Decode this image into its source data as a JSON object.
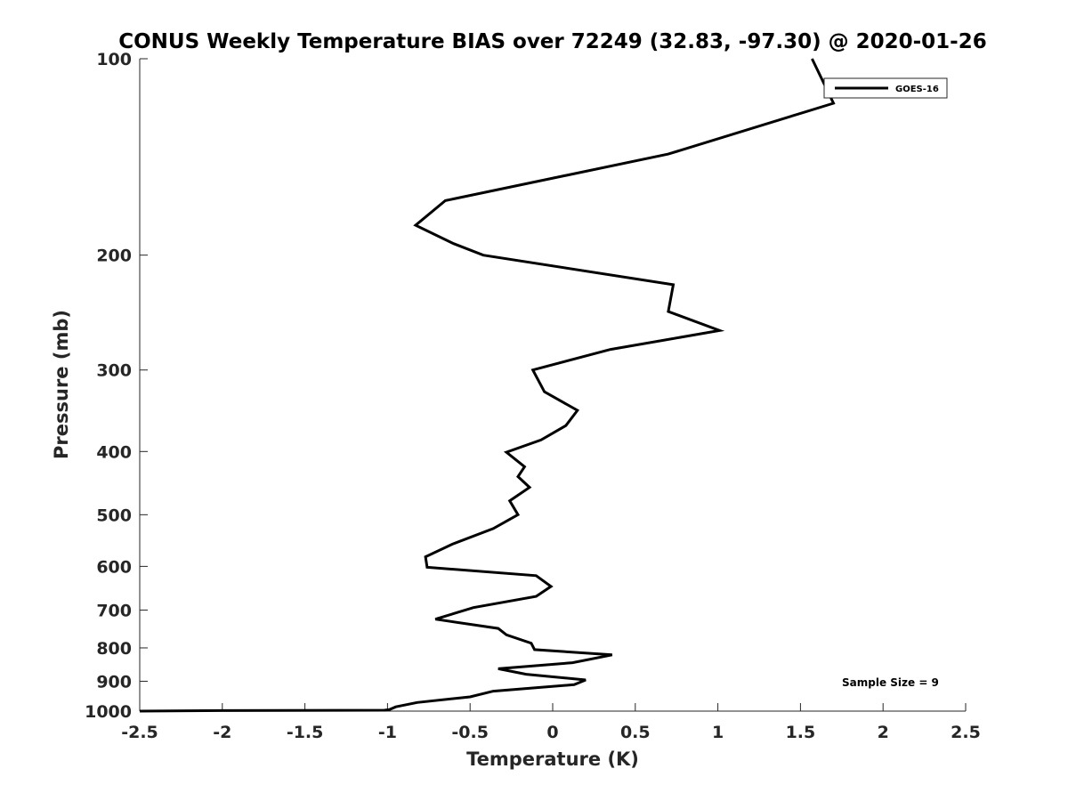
{
  "chart_data": {
    "type": "line",
    "title": "CONUS Weekly Temperature BIAS over 72249 (32.83, -97.30) @ 2020-01-26",
    "xlabel": "Temperature (K)",
    "ylabel": "Pressure (mb)",
    "xlim": [
      -2.5,
      2.5
    ],
    "ylim": [
      100,
      1000
    ],
    "y_scale": "log",
    "y_reversed": true,
    "x_ticks": [
      -2.5,
      -2,
      -1.5,
      -1,
      -0.5,
      0,
      0.5,
      1,
      1.5,
      2,
      2.5
    ],
    "x_tick_labels": [
      "-2.5",
      "-2",
      "-1.5",
      "-1",
      "-0.5",
      "0",
      "0.5",
      "1",
      "1.5",
      "2",
      "2.5"
    ],
    "y_ticks": [
      100,
      200,
      300,
      400,
      500,
      600,
      700,
      800,
      900,
      1000
    ],
    "y_tick_labels": [
      "100",
      "200",
      "300",
      "400",
      "500",
      "600",
      "700",
      "800",
      "900",
      "1000"
    ],
    "grid": false,
    "legend_position": "top-right",
    "annotation": "Sample Size = 9",
    "series": [
      {
        "name": "GOES-16",
        "color": "#000000",
        "points": [
          {
            "x": 1.57,
            "y": 100
          },
          {
            "x": 1.7,
            "y": 117
          },
          {
            "x": 0.7,
            "y": 140
          },
          {
            "x": -0.65,
            "y": 165
          },
          {
            "x": -0.83,
            "y": 180
          },
          {
            "x": -0.6,
            "y": 192
          },
          {
            "x": -0.42,
            "y": 200
          },
          {
            "x": 0.73,
            "y": 222
          },
          {
            "x": 0.7,
            "y": 244
          },
          {
            "x": 1.01,
            "y": 261
          },
          {
            "x": 0.35,
            "y": 279
          },
          {
            "x": -0.12,
            "y": 300
          },
          {
            "x": -0.05,
            "y": 324
          },
          {
            "x": 0.15,
            "y": 346
          },
          {
            "x": 0.08,
            "y": 365
          },
          {
            "x": -0.07,
            "y": 384
          },
          {
            "x": -0.28,
            "y": 401
          },
          {
            "x": -0.17,
            "y": 422
          },
          {
            "x": -0.21,
            "y": 437
          },
          {
            "x": -0.14,
            "y": 454
          },
          {
            "x": -0.26,
            "y": 476
          },
          {
            "x": -0.21,
            "y": 500
          },
          {
            "x": -0.36,
            "y": 525
          },
          {
            "x": -0.61,
            "y": 555
          },
          {
            "x": -0.77,
            "y": 580
          },
          {
            "x": -0.76,
            "y": 602
          },
          {
            "x": -0.1,
            "y": 620
          },
          {
            "x": -0.01,
            "y": 644
          },
          {
            "x": -0.1,
            "y": 667
          },
          {
            "x": -0.48,
            "y": 694
          },
          {
            "x": -0.71,
            "y": 723
          },
          {
            "x": -0.33,
            "y": 747
          },
          {
            "x": -0.28,
            "y": 764
          },
          {
            "x": -0.13,
            "y": 787
          },
          {
            "x": -0.11,
            "y": 805
          },
          {
            "x": 0.36,
            "y": 820
          },
          {
            "x": 0.12,
            "y": 843
          },
          {
            "x": -0.33,
            "y": 861
          },
          {
            "x": -0.16,
            "y": 878
          },
          {
            "x": 0.2,
            "y": 896
          },
          {
            "x": 0.13,
            "y": 911
          },
          {
            "x": -0.36,
            "y": 932
          },
          {
            "x": -0.5,
            "y": 951
          },
          {
            "x": -0.82,
            "y": 970
          },
          {
            "x": -0.95,
            "y": 985
          },
          {
            "x": -0.99,
            "y": 995
          },
          {
            "x": -1.02,
            "y": 997
          },
          {
            "x": -2.0,
            "y": 998
          },
          {
            "x": -2.5,
            "y": 1000
          }
        ]
      }
    ]
  }
}
